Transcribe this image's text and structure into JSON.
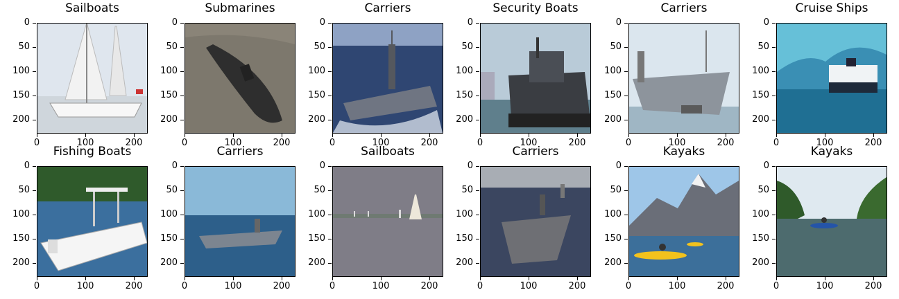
{
  "panels": [
    {
      "title": "Sailboats",
      "scene": "sailboat"
    },
    {
      "title": "Submarines",
      "scene": "submarine"
    },
    {
      "title": "Carriers",
      "scene": "carrier-bow"
    },
    {
      "title": "Security Boats",
      "scene": "security"
    },
    {
      "title": "Carriers",
      "scene": "carrier-side"
    },
    {
      "title": "Cruise Ships",
      "scene": "cruise"
    },
    {
      "title": "Fishing Boats",
      "scene": "fishing"
    },
    {
      "title": "Carriers",
      "scene": "carrier-far"
    },
    {
      "title": "Sailboats",
      "scene": "sail-distant"
    },
    {
      "title": "Carriers",
      "scene": "carrier-deck"
    },
    {
      "title": "Kayaks",
      "scene": "kayak-mountain"
    },
    {
      "title": "Kayaks",
      "scene": "kayak-river"
    }
  ],
  "axes": {
    "y_ticks": [
      "0",
      "50",
      "100",
      "150",
      "200"
    ],
    "x_ticks": [
      "0",
      "100",
      "200"
    ]
  }
}
